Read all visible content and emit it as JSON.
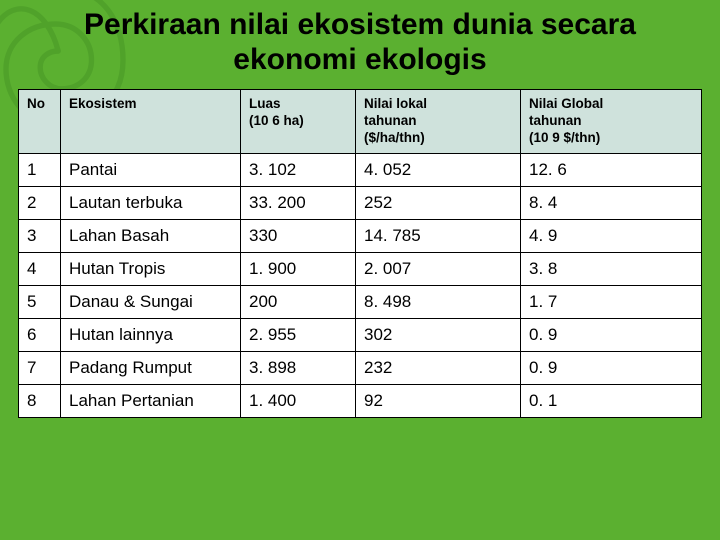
{
  "title": "Perkiraan nilai ekosistem dunia secara ekonomi ekologis",
  "table": {
    "columns": [
      {
        "label": "No",
        "class": "col-no"
      },
      {
        "label": "Ekosistem",
        "class": "col-eko"
      },
      {
        "label": "Luas\n(10 6     ha)",
        "class": "col-luas"
      },
      {
        "label": "Nilai lokal\ntahunan\n($/ha/thn)",
        "class": "col-lokal"
      },
      {
        "label": "Nilai Global\ntahunan\n(10 9   $/thn)",
        "class": "col-global"
      }
    ],
    "rows": [
      [
        "1",
        "Pantai",
        "3. 102",
        "4. 052",
        "12. 6"
      ],
      [
        "2",
        "Lautan terbuka",
        "33. 200",
        "252",
        "8. 4"
      ],
      [
        "3",
        "Lahan Basah",
        "330",
        "14. 785",
        "4. 9"
      ],
      [
        "4",
        "Hutan Tropis",
        "1. 900",
        "2. 007",
        "3. 8"
      ],
      [
        "5",
        "Danau & Sungai",
        "200",
        "8. 498",
        "1. 7"
      ],
      [
        "6",
        "Hutan lainnya",
        "2. 955",
        "302",
        "0. 9"
      ],
      [
        "7",
        "Padang Rumput",
        "3. 898",
        "232",
        "0. 9"
      ],
      [
        "8",
        "Lahan Pertanian",
        "1. 400",
        "92",
        "0. 1"
      ]
    ],
    "header_bg": "#cfe2dc",
    "body_bg": "#ffffff",
    "border_color": "#000000",
    "page_bg": "#5bb030",
    "title_fontsize": 30,
    "cell_fontsize": 17,
    "header_fontsize": 13.5
  }
}
